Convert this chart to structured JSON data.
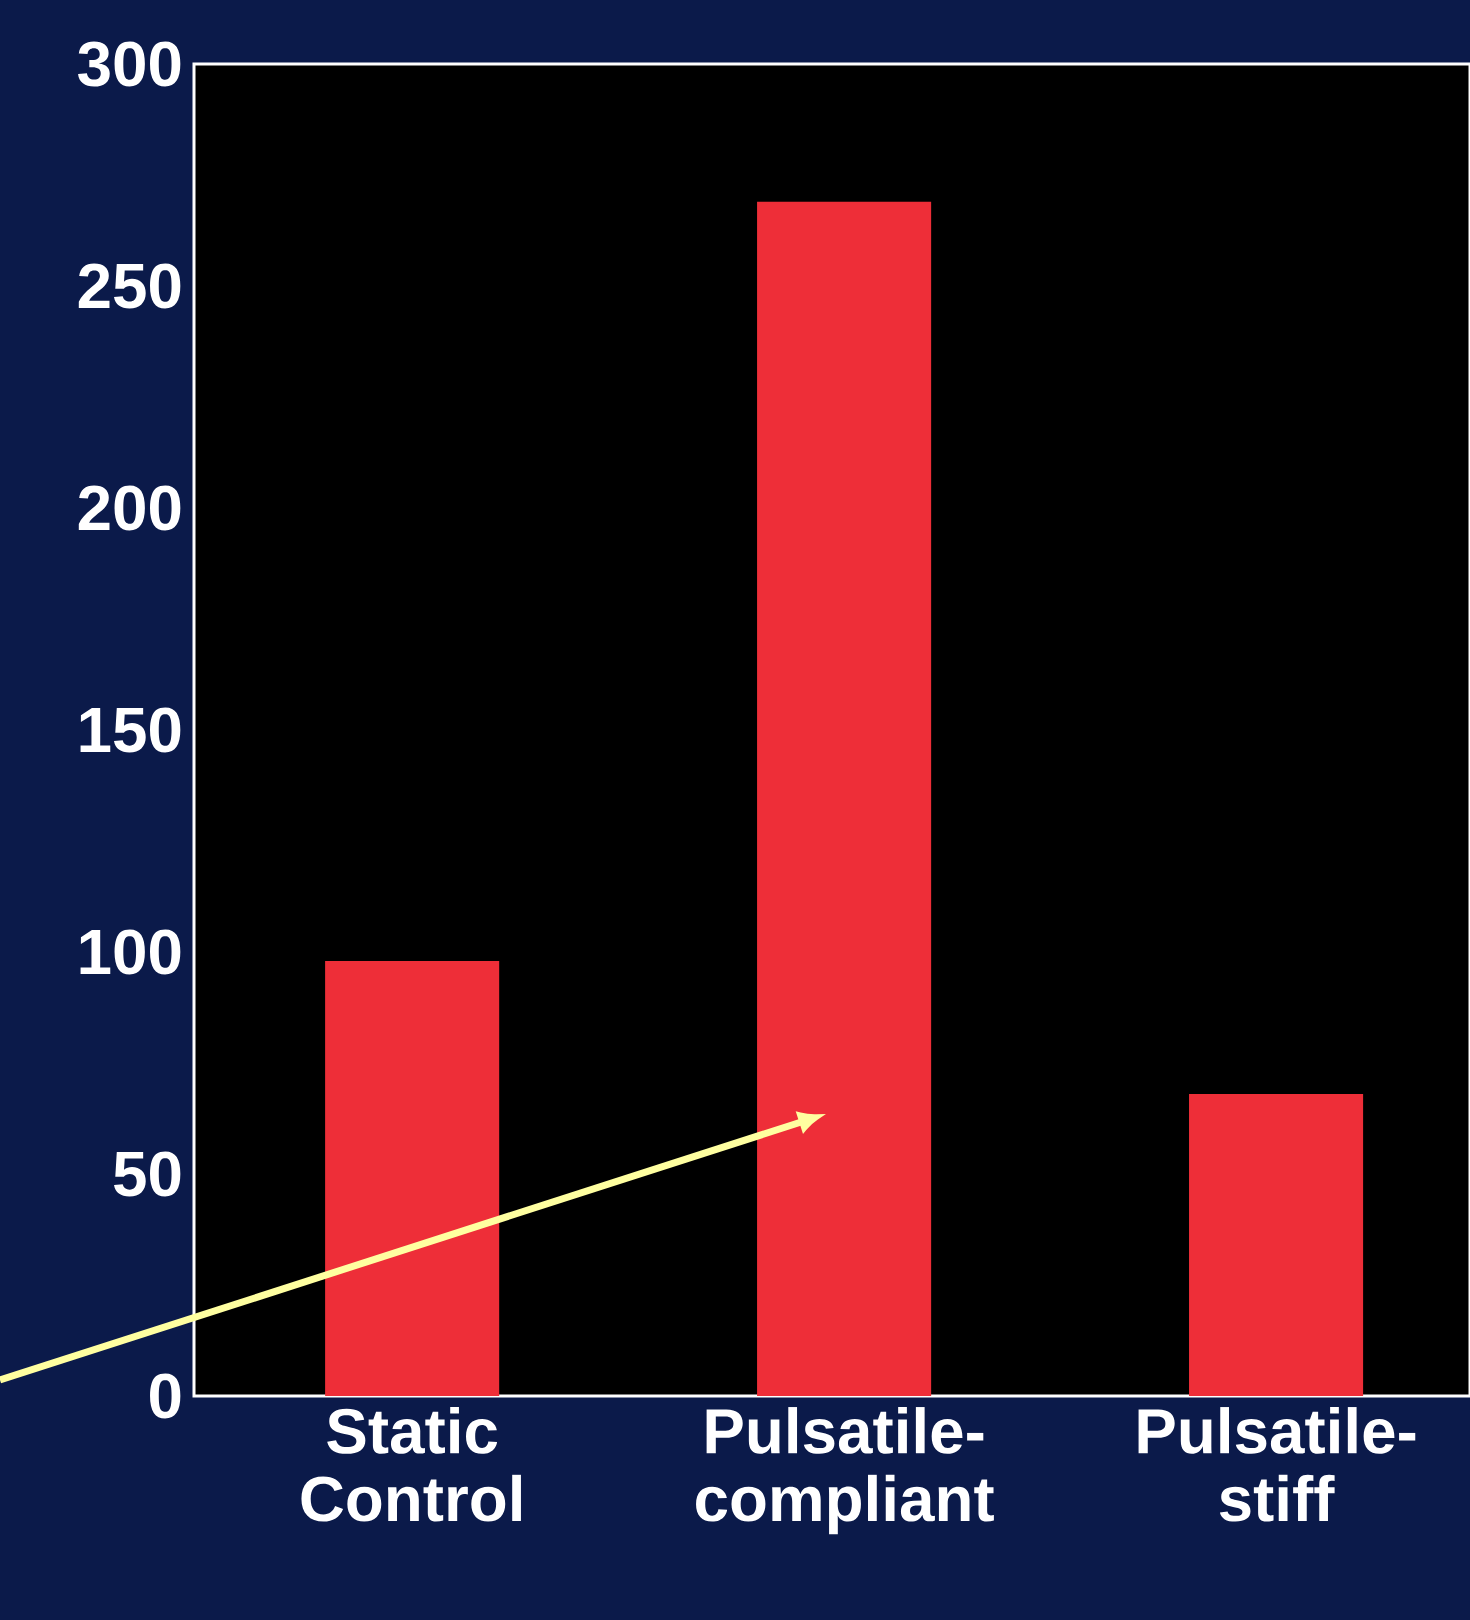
{
  "chart_data": {
    "type": "bar",
    "categories": [
      "Static Control",
      "Pulsatile-compliant",
      "Pulsatile-stiff"
    ],
    "values": [
      98,
      269,
      68
    ],
    "color": "#ee2e38",
    "ylim": [
      0,
      300
    ],
    "yticks": [
      0,
      50,
      100,
      150,
      200,
      250,
      300
    ]
  }
}
